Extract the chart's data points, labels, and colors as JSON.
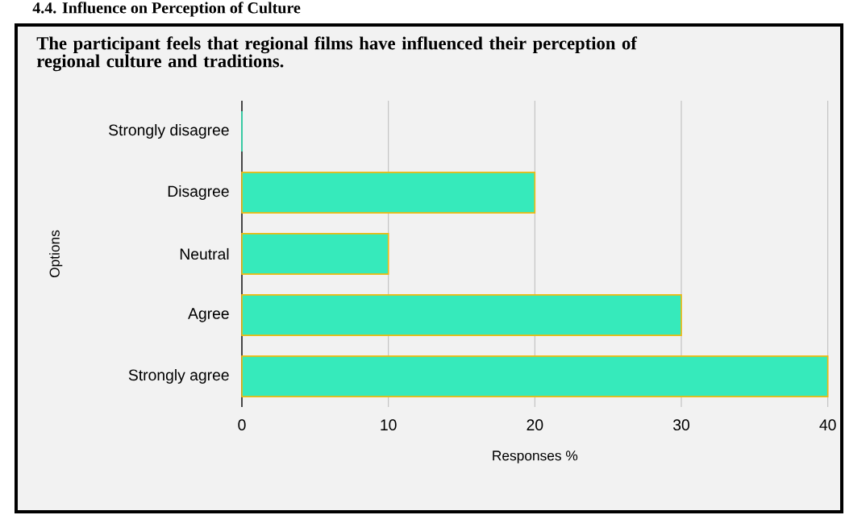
{
  "chart_data": {
    "type": "bar",
    "orientation": "horizontal",
    "title": "The participant feels that regional films have influenced their perception of regional culture and traditions.",
    "annotations": [
      "4.4. Influence on Perception of Culture"
    ],
    "categories": [
      "Strongly disagree",
      "Disagree",
      "Neutral",
      "Agree",
      "Strongly agree"
    ],
    "values": [
      0,
      20,
      10,
      30,
      40
    ],
    "color": "#36eabb",
    "xlabel": "Responses %",
    "ylabel": "Options",
    "xlim": [
      0,
      40
    ],
    "xticks": [
      0,
      10,
      20,
      30,
      40
    ],
    "grid": "x"
  }
}
